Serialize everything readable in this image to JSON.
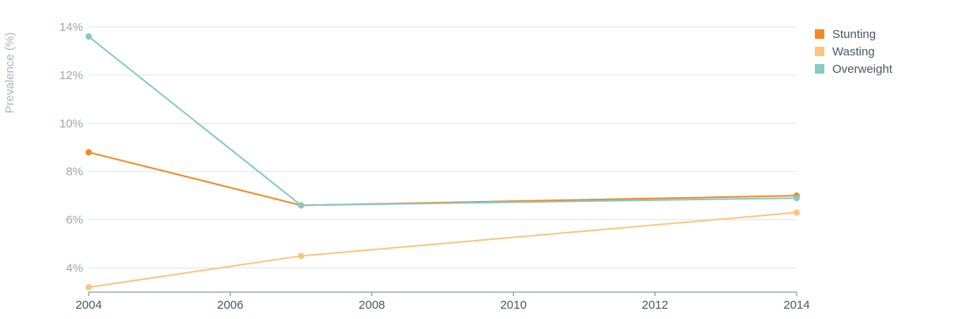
{
  "chart_data": {
    "type": "line",
    "ylabel": "Prevalence (%)",
    "xlabel": "",
    "x_ticks": [
      "2004",
      "2006",
      "2008",
      "2010",
      "2012",
      "2014"
    ],
    "y_ticks": [
      "4%",
      "6%",
      "8%",
      "10%",
      "12%",
      "14%"
    ],
    "xlim": [
      2004,
      2014
    ],
    "ylim": [
      3,
      14
    ],
    "grid": true,
    "legend": "top-right",
    "series": [
      {
        "name": "Stunting",
        "color": "#f08a24",
        "x": [
          2004,
          2007,
          2014
        ],
        "y": [
          8.8,
          6.6,
          7.0
        ]
      },
      {
        "name": "Wasting",
        "color": "#fcc57e",
        "x": [
          2004,
          2007,
          2014
        ],
        "y": [
          3.2,
          4.5,
          6.3
        ]
      },
      {
        "name": "Overweight",
        "color": "#86c9c6",
        "x": [
          2004,
          2007,
          2014
        ],
        "y": [
          13.6,
          6.6,
          6.9
        ]
      }
    ]
  }
}
